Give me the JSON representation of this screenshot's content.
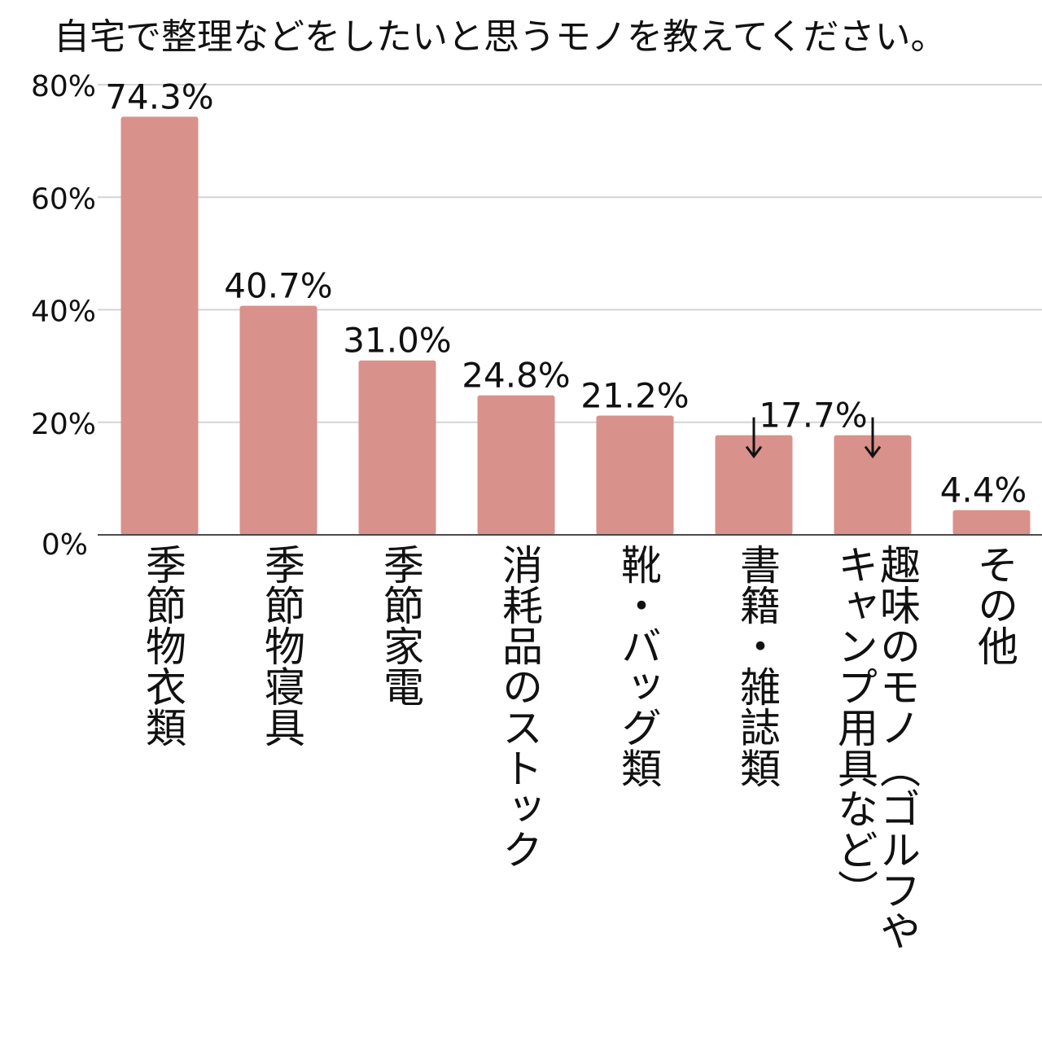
{
  "chart_data": {
    "type": "bar",
    "title": "自宅で整理などをしたいと思うモノを教えてください。",
    "xlabel": "",
    "ylabel": "",
    "ylim": [
      0,
      80
    ],
    "y_ticks": [
      0,
      20,
      40,
      60,
      80
    ],
    "y_tick_labels": [
      "0%",
      "20%",
      "40%",
      "60%",
      "80%"
    ],
    "categories": [
      "季節物衣類",
      "季節物寝具",
      "季節家電",
      "消耗品のストック",
      "靴・バッグ類",
      "書籍・雑誌類",
      "趣味のモノ（ゴルフやキャンプ用具など）",
      "その他"
    ],
    "category_label_lines": [
      [
        "季節物衣類"
      ],
      [
        "季節物寝具"
      ],
      [
        "季節家電"
      ],
      [
        "消耗品のストック"
      ],
      [
        "靴・バッグ類"
      ],
      [
        "書籍・雑誌類"
      ],
      [
        "キャンプ用具など）",
        "趣味のモノ（ゴルフや"
      ],
      [
        "その他"
      ]
    ],
    "values": [
      74.3,
      40.7,
      31.0,
      24.8,
      21.2,
      17.7,
      17.7,
      4.4
    ],
    "data_labels": [
      "74.3%",
      "40.7%",
      "31.0%",
      "24.8%",
      "21.2%",
      "17.7%",
      "",
      "4.4%"
    ],
    "pointer_arrows_on": [
      "書籍・雑誌類",
      "趣味のモノ（ゴルフやキャンプ用具など）"
    ],
    "grid": true,
    "legend": "none",
    "colors": {
      "bar": "#d9918b",
      "grid": "#d4d4d4",
      "axis": "#4a4a4a",
      "text": "#111111"
    }
  }
}
